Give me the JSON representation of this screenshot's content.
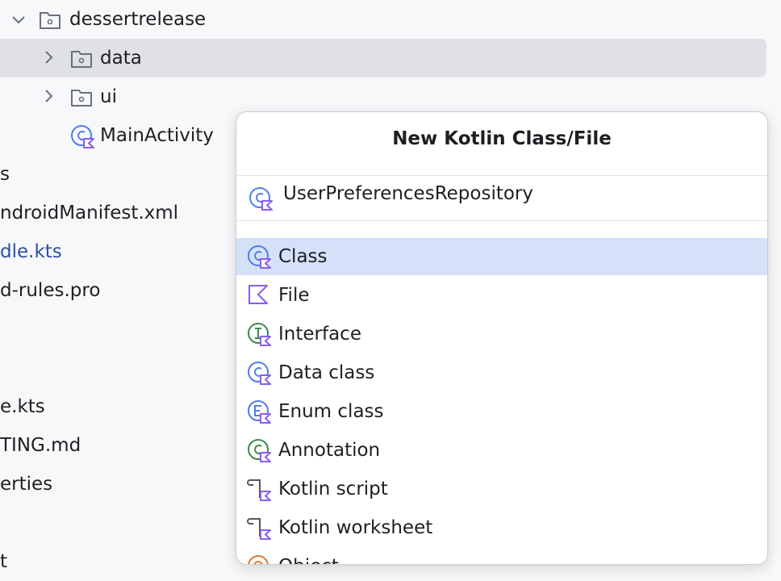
{
  "project_tree": {
    "rows": [
      "dessertrelease",
      "data",
      "ui",
      "MainActivity",
      "s",
      "ndroidManifest.xml",
      "dle.kts",
      "d-rules.pro",
      "e.kts",
      "TING.md",
      "erties",
      "t"
    ]
  },
  "dialog": {
    "title": "New Kotlin Class/File",
    "query": "UserPreferencesRepository",
    "items": [
      "Class",
      "File",
      "Interface",
      "Data class",
      "Enum class",
      "Annotation",
      "Kotlin script",
      "Kotlin worksheet",
      "Object"
    ]
  }
}
